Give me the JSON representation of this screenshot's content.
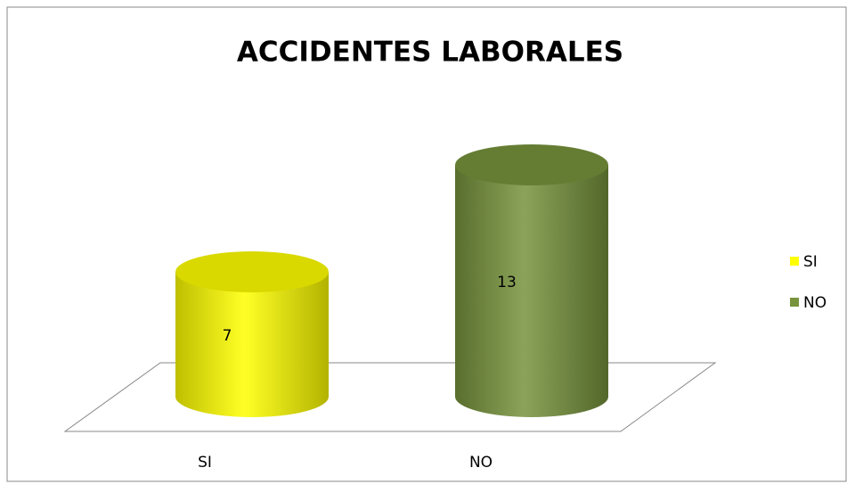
{
  "chart_data": {
    "type": "bar",
    "title": "ACCIDENTES LABORALES",
    "categories": [
      "SI",
      "NO"
    ],
    "values": [
      7,
      13
    ],
    "colors": [
      "#ffff00",
      "#77933c"
    ],
    "legend": "right"
  }
}
